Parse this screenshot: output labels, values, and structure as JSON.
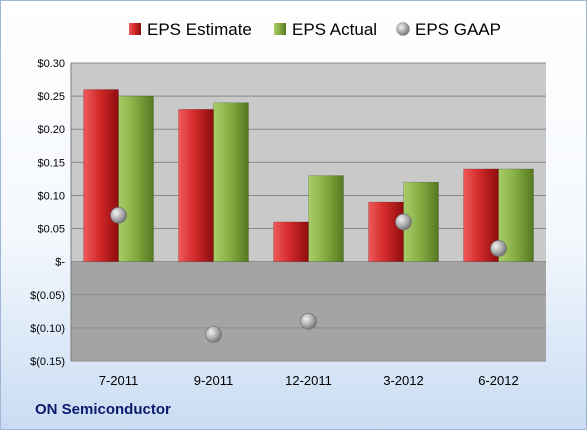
{
  "company": "ON Semiconductor",
  "chart_data": {
    "type": "bar",
    "categories": [
      "7-2011",
      "9-2011",
      "12-2011",
      "3-2012",
      "6-2012"
    ],
    "series": [
      {
        "name": "EPS Estimate",
        "type": "bar",
        "color": "#c8161d",
        "values": [
          0.26,
          0.23,
          0.06,
          0.09,
          0.14
        ]
      },
      {
        "name": "EPS Actual",
        "type": "bar",
        "color": "#7da83a",
        "values": [
          0.25,
          0.24,
          0.13,
          0.12,
          0.14
        ]
      },
      {
        "name": "EPS GAAP",
        "type": "scatter",
        "color": "#9a9a9a",
        "values": [
          0.07,
          -0.11,
          -0.09,
          0.06,
          0.02
        ]
      }
    ],
    "ylim": [
      -0.15,
      0.3
    ],
    "ytick_values": [
      0.3,
      0.25,
      0.2,
      0.15,
      0.1,
      0.05,
      0,
      -0.05,
      -0.1,
      -0.15
    ],
    "ytick_labels": [
      "$0.30",
      "$0.25",
      "$0.20",
      "$0.15",
      "$0.10",
      "$0.05",
      "$-",
      "$(0.05)",
      "$(0.10)",
      "$(0.15)"
    ],
    "legend_position": "top",
    "grid": true,
    "colors": {
      "plot_positive": "#c9c9c9",
      "plot_negative": "#a4a4a4",
      "gridline": "#8a8a8a",
      "text": "#000000",
      "company": "#0b1a6a"
    }
  }
}
